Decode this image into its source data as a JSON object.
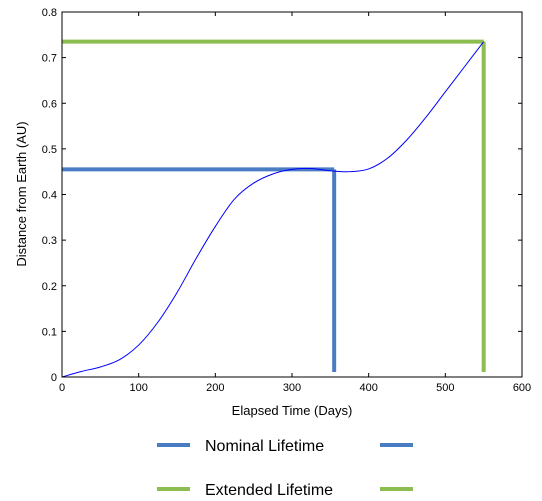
{
  "chart_data": {
    "type": "line",
    "xlabel": "Elapsed Time (Days)",
    "ylabel": "Distance from Earth (AU)",
    "xlim": [
      0,
      600
    ],
    "ylim": [
      0,
      0.8
    ],
    "xticks": [
      0,
      100,
      200,
      300,
      400,
      500,
      600
    ],
    "yticks": [
      0,
      0.1,
      0.2,
      0.3,
      0.4,
      0.5,
      0.6,
      0.7,
      0.8
    ],
    "xtick_labels": [
      "0",
      "100",
      "200",
      "300",
      "400",
      "500",
      "600"
    ],
    "ytick_labels": [
      "0",
      "0.1",
      "0.2",
      "0.3",
      "0.4",
      "0.5",
      "0.6",
      "0.7",
      "0.8"
    ],
    "grid": false,
    "series": [
      {
        "color": "#0000ff",
        "x": [
          0,
          25,
          50,
          75,
          100,
          125,
          150,
          175,
          200,
          225,
          250,
          275,
          300,
          325,
          350,
          375,
          400,
          425,
          450,
          475,
          500,
          525,
          550
        ],
        "y": [
          0.0,
          0.012,
          0.022,
          0.038,
          0.07,
          0.12,
          0.185,
          0.26,
          0.33,
          0.39,
          0.425,
          0.445,
          0.455,
          0.457,
          0.452,
          0.45,
          0.456,
          0.48,
          0.52,
          0.57,
          0.625,
          0.68,
          0.735
        ]
      }
    ],
    "markers": [
      {
        "name": "Nominal Lifetime",
        "color": "#4a7cc4",
        "x": 355,
        "y": 0.455
      },
      {
        "name": "Extended Lifetime",
        "color": "#8ebd4f",
        "x": 550,
        "y": 0.735
      }
    ],
    "legend_position": "bottom"
  }
}
